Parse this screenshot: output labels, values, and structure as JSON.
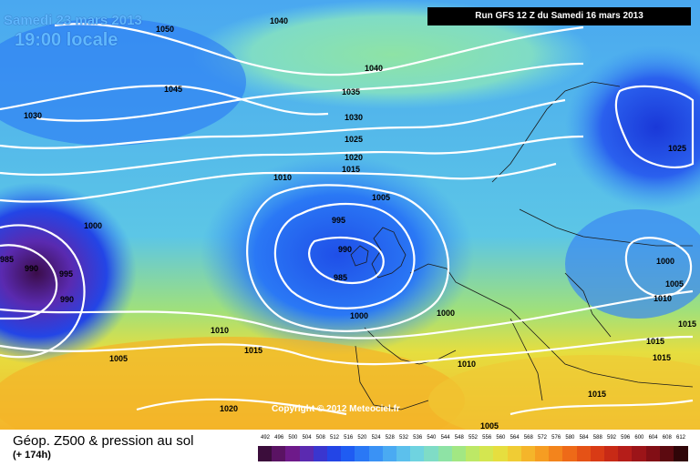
{
  "header": {
    "date": "Samedi 23 mars 2013",
    "local_time": "19:00 locale",
    "run": "Run GFS 12 Z du Samedi 16 mars 2013"
  },
  "footer": {
    "title": "Géop. Z500 & pression au sol",
    "lead": "(+ 174h)",
    "copyright": "Copyright © 2012 Meteociel.fr"
  },
  "legend": {
    "ticks": [
      "492",
      "496",
      "500",
      "504",
      "508",
      "512",
      "516",
      "520",
      "524",
      "528",
      "532",
      "536",
      "540",
      "544",
      "548",
      "552",
      "556",
      "560",
      "564",
      "568",
      "572",
      "576",
      "580",
      "584",
      "588",
      "592",
      "596",
      "600",
      "604",
      "608",
      "612"
    ],
    "colors": [
      "#3b0d3b",
      "#5a1363",
      "#6e1a8a",
      "#5b2ab0",
      "#3a36cf",
      "#2345e6",
      "#1f5cf2",
      "#2a78f5",
      "#3a92f5",
      "#4aaaf2",
      "#5cc0ec",
      "#6fd3e0",
      "#7fdcc6",
      "#8ee3a5",
      "#a2e783",
      "#bde866",
      "#d4e650",
      "#e6de3f",
      "#f0cc34",
      "#f5b52a",
      "#f69d22",
      "#f3841c",
      "#ee6a18",
      "#e55216",
      "#d93b15",
      "#c82a16",
      "#b51d19",
      "#9c1418",
      "#820e15",
      "#5c0a10",
      "#300508"
    ],
    "colors_note": "color swatches beneath each tick value"
  },
  "isobars": [
    "1050",
    "1045",
    "1040",
    "1040",
    "1035",
    "1030",
    "1030",
    "1025",
    "1025",
    "1020",
    "1015",
    "1010",
    "1005",
    "1000",
    "995",
    "990",
    "985",
    "985",
    "990",
    "995",
    "990",
    "1000",
    "1000",
    "1010",
    "1015",
    "1005",
    "1010",
    "1015",
    "1020",
    "1000",
    "1005",
    "1010",
    "1015",
    "1015",
    "1005",
    "1015"
  ]
}
